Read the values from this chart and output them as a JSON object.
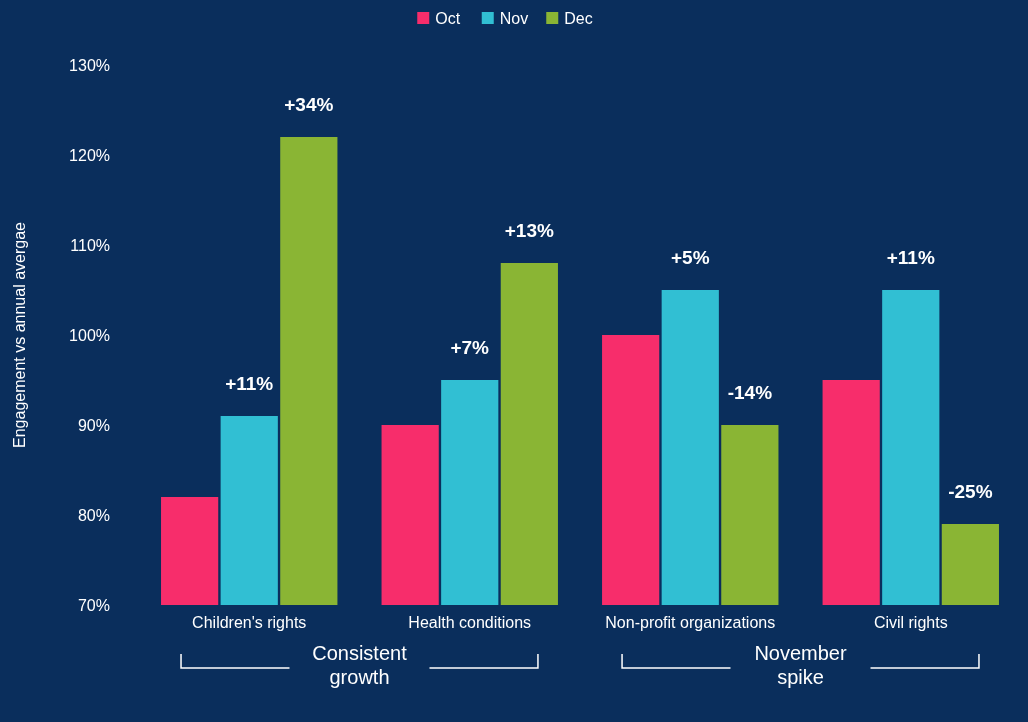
{
  "chart_data": {
    "type": "bar",
    "ylabel": "Engagement vs annual avergae",
    "categories": [
      "Children's rights",
      "Health conditions",
      "Non-profit organizations",
      "Civil rights"
    ],
    "series": [
      {
        "name": "Oct",
        "color": "#f72d6b",
        "values": [
          82,
          90,
          100,
          95
        ]
      },
      {
        "name": "Nov",
        "color": "#31bfd3",
        "values": [
          91,
          95,
          105,
          105
        ]
      },
      {
        "name": "Dec",
        "color": "#8ab534",
        "values": [
          122,
          108,
          90,
          79
        ]
      }
    ],
    "ylim": [
      70,
      130
    ],
    "yticks": [
      {
        "value": 70,
        "label": "70%"
      },
      {
        "value": 80,
        "label": "80%"
      },
      {
        "value": 90,
        "label": "90%"
      },
      {
        "value": 100,
        "label": "100%"
      },
      {
        "value": 110,
        "label": "110%"
      },
      {
        "value": 120,
        "label": "120%"
      },
      {
        "value": 130,
        "label": "130%"
      }
    ],
    "legend": "top",
    "grid": false,
    "annotations": [
      "Consistent growth",
      "November spike",
      "+34%",
      "+13%",
      "-14%",
      "-25%",
      {
        "text": "+11%",
        "x": "Children's rights",
        "y": 91
      },
      {
        "text": "+7%",
        "x": "Health conditions",
        "y": 95
      },
      {
        "text": "+5%",
        "x": "Non-profit organizations",
        "y": 105
      },
      {
        "text": "+11%",
        "x": "Civil rights",
        "y": 105
      }
    ]
  }
}
